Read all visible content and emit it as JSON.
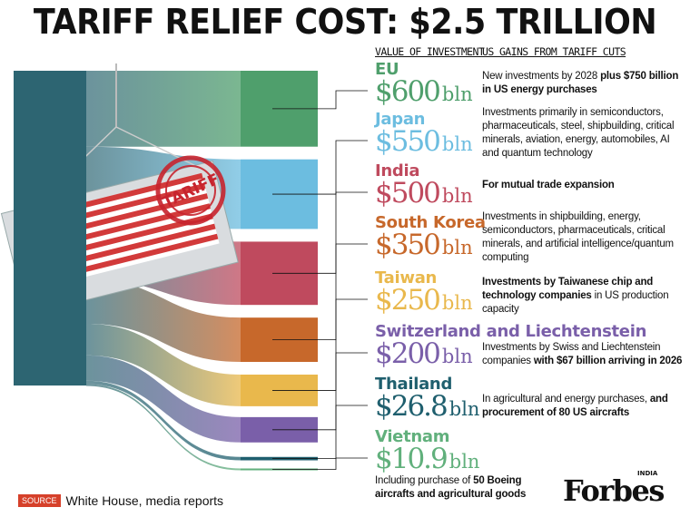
{
  "title": "TARIFF RELIEF COST: $2.5 TRILLION",
  "column_headers": {
    "value": "VALUE OF INVESTMENT",
    "gains": "US GAINS FROM TARIFF CUTS"
  },
  "stamp_text": "TARIFF",
  "source": {
    "tag": "SOURCE",
    "text": "White House, media reports"
  },
  "logo": {
    "name": "Forbes",
    "edition": "INDIA"
  },
  "chart_data": {
    "type": "sankey",
    "title": "TARIFF RELIEF COST: $2.5 TRILLION",
    "unit": "bln",
    "categories": [
      "EU",
      "Japan",
      "India",
      "South Korea",
      "Taiwan",
      "Switzerland and Liechtenstein",
      "Thailand",
      "Vietnam"
    ],
    "values": [
      600,
      550,
      500,
      350,
      250,
      200,
      26.8,
      10.9
    ],
    "colors": [
      "#4f9f6c",
      "#6cbde0",
      "#bf4a5e",
      "#c7682b",
      "#e9b84c",
      "#7a5fa9",
      "#1f5f6e",
      "#61b07c"
    ],
    "source_color": "#2d6572"
  },
  "entries": [
    {
      "country": "EU",
      "amount": "$600",
      "unit": "bln",
      "desc": "New investments by 2028 ",
      "desc_bold": "plus $750 billion in US energy purchases",
      "desc_after": ""
    },
    {
      "country": "Japan",
      "amount": "$550",
      "unit": "bln",
      "desc": "Investments primarily in semiconductors, pharmaceuticals, steel, shipbuilding, critical minerals, aviation, energy, automobiles, AI and quantum technology",
      "desc_bold": "",
      "desc_after": ""
    },
    {
      "country": "India",
      "amount": "$500",
      "unit": "bln",
      "desc": "",
      "desc_bold": "For mutual trade expansion",
      "desc_after": ""
    },
    {
      "country": "South Korea",
      "amount": "$350",
      "unit": "bln",
      "desc": "Investments in shipbuilding, energy, semiconductors, pharmaceuticals, critical minerals, and artificial intelligence/quantum computing",
      "desc_bold": "",
      "desc_after": ""
    },
    {
      "country": "Taiwan",
      "amount": "$250",
      "unit": "bln",
      "desc": "",
      "desc_bold": "Investments by Taiwanese chip and technology companies",
      "desc_after": " in US production capacity"
    },
    {
      "country": "Switzerland and Liechtenstein",
      "amount": "$200",
      "unit": "bln",
      "desc": "Investments by Swiss and Liechtenstein companies ",
      "desc_bold": "with $67 billion arriving in 2026",
      "desc_after": ""
    },
    {
      "country": "Thailand",
      "amount": "$26.8",
      "unit": "bln",
      "desc": "In agricultural and energy purchases, ",
      "desc_bold": "and procurement of 80 US aircrafts",
      "desc_after": ""
    },
    {
      "country": "Vietnam",
      "amount": "$10.9",
      "unit": "bln",
      "desc": "Including purchase of ",
      "desc_bold": "50 Boeing aircrafts and agricultural goods",
      "desc_after": ""
    }
  ]
}
